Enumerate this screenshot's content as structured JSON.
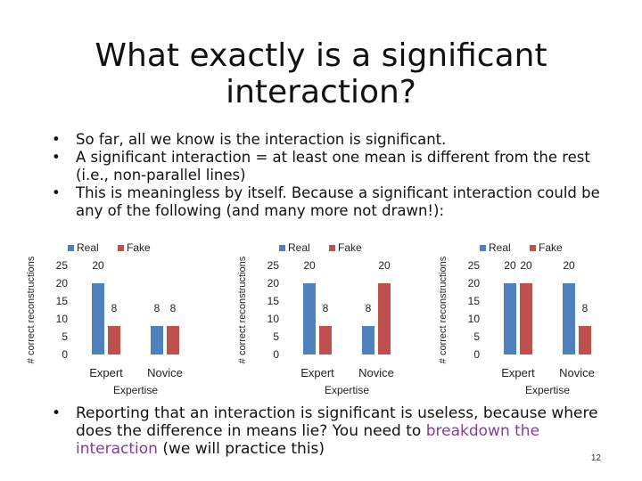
{
  "slide": {
    "title": "What exactly is a significant interaction?",
    "bullets_top": [
      "So far, all we know is the interaction is significant.",
      "A significant interaction = at least one mean is different from the rest (i.e., non-parallel lines)",
      "This is meaningless by itself. Because a significant interaction could be any of the following (and many more not drawn!):"
    ],
    "bullet_bottom": {
      "part1": "Reporting that an interaction is significant is useless, because where does the difference in means lie? You need to ",
      "highlight": "breakdown the interaction",
      "part2": " (we will practice this)"
    },
    "page_number": "12"
  },
  "colors": {
    "real": "#4f81bd",
    "fake": "#c0504d"
  },
  "chart_data": [
    {
      "type": "bar",
      "categories": [
        "Expert",
        "Novice"
      ],
      "series": [
        {
          "name": "Real",
          "values": [
            20,
            8
          ]
        },
        {
          "name": "Fake",
          "values": [
            8,
            8
          ]
        }
      ],
      "xlabel": "Expertise",
      "ylabel": "# correct reconstructions",
      "yticks": [
        "25",
        "20",
        "15",
        "10",
        "5",
        "0"
      ],
      "ylim": [
        0,
        25
      ],
      "legend": "top",
      "grid": false
    },
    {
      "type": "bar",
      "categories": [
        "Expert",
        "Novice"
      ],
      "series": [
        {
          "name": "Real",
          "values": [
            20,
            8
          ]
        },
        {
          "name": "Fake",
          "values": [
            8,
            20
          ]
        }
      ],
      "xlabel": "Expertise",
      "ylabel": "# correct reconstructions",
      "yticks": [
        "25",
        "20",
        "15",
        "10",
        "5",
        "0"
      ],
      "ylim": [
        0,
        25
      ],
      "legend": "top",
      "grid": false
    },
    {
      "type": "bar",
      "categories": [
        "Expert",
        "Novice"
      ],
      "series": [
        {
          "name": "Real",
          "values": [
            20,
            20
          ]
        },
        {
          "name": "Fake",
          "values": [
            20,
            8
          ]
        }
      ],
      "xlabel": "Expertise",
      "ylabel": "# correct reconstructions",
      "yticks": [
        "25",
        "20",
        "15",
        "10",
        "5",
        "0"
      ],
      "ylim": [
        0,
        25
      ],
      "legend": "top",
      "grid": false
    }
  ]
}
